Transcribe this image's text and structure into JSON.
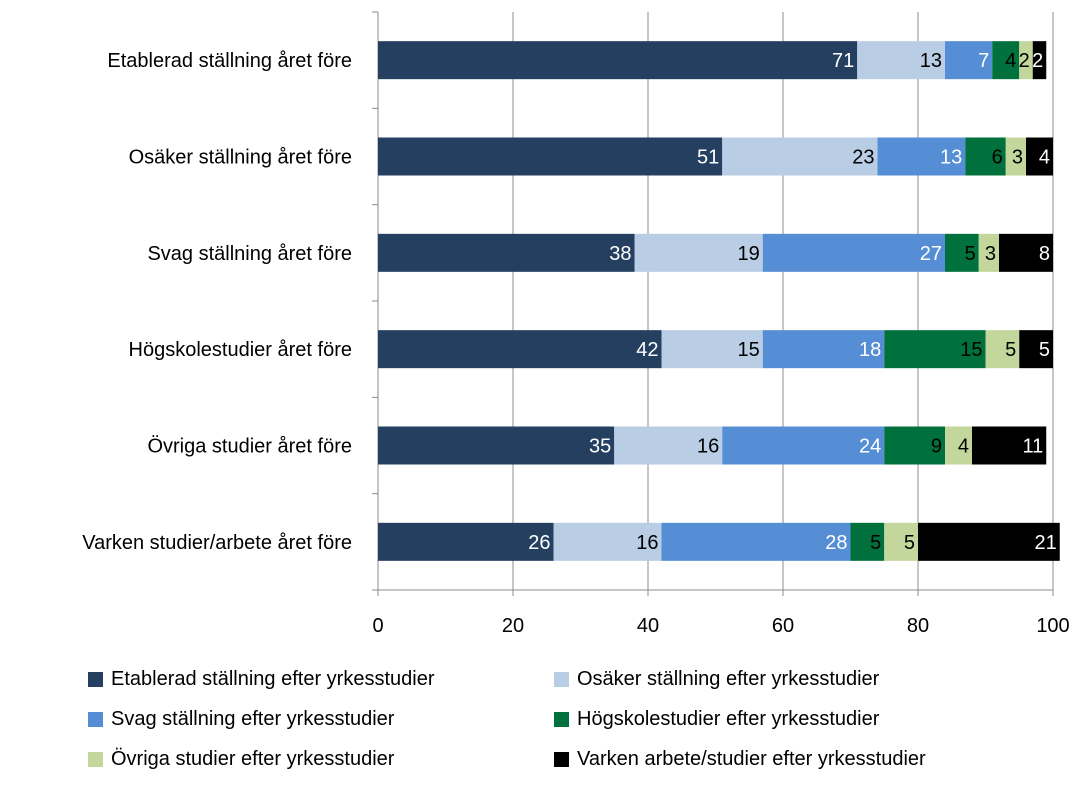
{
  "chart_data": {
    "type": "bar",
    "orientation": "horizontal",
    "stacked": true,
    "categories": [
      "Etablerad ställning året före",
      "Osäker ställning året före",
      "Svag ställning året före",
      "Högskolestudier året före",
      "Övriga studier året före",
      "Varken studier/arbete året före"
    ],
    "series": [
      {
        "name": "Etablerad ställning efter yrkesstudier",
        "color": "#243f60",
        "label_color": "#ffffff",
        "values": [
          71,
          51,
          38,
          42,
          35,
          26
        ]
      },
      {
        "name": "Osäker ställning efter yrkesstudier",
        "color": "#b9cde5",
        "label_color": "#000000",
        "values": [
          13,
          23,
          19,
          15,
          16,
          16
        ]
      },
      {
        "name": "Svag ställning efter yrkesstudier",
        "color": "#558ed5",
        "label_color": "#ffffff",
        "values": [
          7,
          13,
          27,
          18,
          24,
          28
        ]
      },
      {
        "name": "Högskolestudier efter yrkesstudier",
        "color": "#00703c",
        "label_color": "#000000",
        "values": [
          4,
          6,
          5,
          15,
          9,
          5
        ]
      },
      {
        "name": "Övriga studier efter yrkesstudier",
        "color": "#c3d69b",
        "label_color": "#000000",
        "values": [
          2,
          3,
          3,
          5,
          4,
          5
        ]
      },
      {
        "name": "Varken arbete/studier efter yrkesstudier",
        "color": "#000000",
        "label_color": "#ffffff",
        "values": [
          2,
          4,
          8,
          5,
          11,
          21
        ]
      }
    ],
    "xlim": [
      0,
      100
    ],
    "xticks": [
      0,
      20,
      40,
      60,
      80,
      100
    ],
    "grid": true,
    "legend_position": "bottom"
  }
}
